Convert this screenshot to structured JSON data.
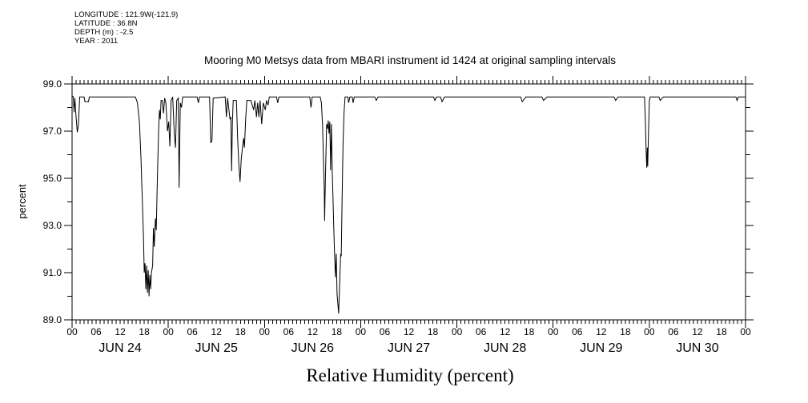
{
  "metadata": {
    "lines": [
      "LONGITUDE : 121.9W(-121.9)",
      "LATITUDE : 36.8N",
      "DEPTH (m) : -2.5",
      "YEAR : 2011"
    ]
  },
  "chart_data": {
    "type": "line",
    "title": "Mooring M0 Metsys data from MBARI instrument id 1424 at original sampling intervals",
    "xlabel": "Relative Humidity (percent)",
    "ylabel": "percent",
    "ylim": [
      89.0,
      99.0
    ],
    "y_major_ticks": [
      89.0,
      91.0,
      93.0,
      95.0,
      97.0,
      99.0
    ],
    "y_minor_step": 1.0,
    "x_range_hours": [
      0,
      168
    ],
    "x_start": "JUN 24 00:00",
    "x_end": "JUL 01 00:00",
    "x_hour_label_step": 6,
    "hour_label_cycle": [
      "00",
      "06",
      "12",
      "18"
    ],
    "day_labels": [
      "JUN 24",
      "JUN 25",
      "JUN 26",
      "JUN 27",
      "JUN 28",
      "JUN 29",
      "JUN 30"
    ],
    "grid": false,
    "legend": "none",
    "line_color": "#000000",
    "background": "#ffffff",
    "points_hour_percent": [
      [
        0,
        98.5
      ],
      [
        0.3,
        98.45
      ],
      [
        0.5,
        97.8
      ],
      [
        0.7,
        98.4
      ],
      [
        1.0,
        97.6
      ],
      [
        1.3,
        96.95
      ],
      [
        1.6,
        97.3
      ],
      [
        1.9,
        98.45
      ],
      [
        3.0,
        98.45
      ],
      [
        3.2,
        98.25
      ],
      [
        4.1,
        98.25
      ],
      [
        4.3,
        98.45
      ],
      [
        15.8,
        98.45
      ],
      [
        16.3,
        98.2
      ],
      [
        16.8,
        97.4
      ],
      [
        17.2,
        95.8
      ],
      [
        17.5,
        94.2
      ],
      [
        17.8,
        92.6
      ],
      [
        18.0,
        91.0
      ],
      [
        18.2,
        91.4
      ],
      [
        18.4,
        90.3
      ],
      [
        18.6,
        91.3
      ],
      [
        18.8,
        90.15
      ],
      [
        19.0,
        91.1
      ],
      [
        19.2,
        90.0
      ],
      [
        19.4,
        90.9
      ],
      [
        19.6,
        90.3
      ],
      [
        19.8,
        91.0
      ],
      [
        20.1,
        91.3
      ],
      [
        20.3,
        92.9
      ],
      [
        20.5,
        92.1
      ],
      [
        20.8,
        93.3
      ],
      [
        21.0,
        92.8
      ],
      [
        21.2,
        94.4
      ],
      [
        21.4,
        95.8
      ],
      [
        21.6,
        97.1
      ],
      [
        21.8,
        97.9
      ],
      [
        22.0,
        97.5
      ],
      [
        22.2,
        98.3
      ],
      [
        22.5,
        98.3
      ],
      [
        22.8,
        97.75
      ],
      [
        23.1,
        98.4
      ],
      [
        23.4,
        98.2
      ],
      [
        23.8,
        97.0
      ],
      [
        24.1,
        97.4
      ],
      [
        24.4,
        96.35
      ],
      [
        24.7,
        98.3
      ],
      [
        25.1,
        98.45
      ],
      [
        25.5,
        96.9
      ],
      [
        25.8,
        96.3
      ],
      [
        26.1,
        98.3
      ],
      [
        26.5,
        98.4
      ],
      [
        26.7,
        94.6
      ],
      [
        27.0,
        98.2
      ],
      [
        27.3,
        98.0
      ],
      [
        27.6,
        98.45
      ],
      [
        31.2,
        98.45
      ],
      [
        31.5,
        98.2
      ],
      [
        31.8,
        98.45
      ],
      [
        34.3,
        98.45
      ],
      [
        34.6,
        96.5
      ],
      [
        34.9,
        96.6
      ],
      [
        35.2,
        98.4
      ],
      [
        38.2,
        98.45
      ],
      [
        38.5,
        97.6
      ],
      [
        38.8,
        98.4
      ],
      [
        39.4,
        97.5
      ],
      [
        39.6,
        97.6
      ],
      [
        39.8,
        95.3
      ],
      [
        40.0,
        97.4
      ],
      [
        40.2,
        98.3
      ],
      [
        41.0,
        98.3
      ],
      [
        41.3,
        96.7
      ],
      [
        41.6,
        95.6
      ],
      [
        41.9,
        94.85
      ],
      [
        42.2,
        95.8
      ],
      [
        42.5,
        96.3
      ],
      [
        42.8,
        96.7
      ],
      [
        43.0,
        96.3
      ],
      [
        43.3,
        97.5
      ],
      [
        43.6,
        98.3
      ],
      [
        44.6,
        98.3
      ],
      [
        45.3,
        97.9
      ],
      [
        45.6,
        98.3
      ],
      [
        46.0,
        97.6
      ],
      [
        46.3,
        98.2
      ],
      [
        46.6,
        97.6
      ],
      [
        46.9,
        98.3
      ],
      [
        47.3,
        97.3
      ],
      [
        47.7,
        98.2
      ],
      [
        48.2,
        97.9
      ],
      [
        48.5,
        98.3
      ],
      [
        48.9,
        98.1
      ],
      [
        49.2,
        98.45
      ],
      [
        51.0,
        98.45
      ],
      [
        51.3,
        98.2
      ],
      [
        51.6,
        98.45
      ],
      [
        59.3,
        98.45
      ],
      [
        59.6,
        98.0
      ],
      [
        59.9,
        98.45
      ],
      [
        61.9,
        98.45
      ],
      [
        62.2,
        98.2
      ],
      [
        62.5,
        97.2
      ],
      [
        62.7,
        95.8
      ],
      [
        62.9,
        94.6
      ],
      [
        63.0,
        93.2
      ],
      [
        63.2,
        95.0
      ],
      [
        63.5,
        97.3
      ],
      [
        63.7,
        97.1
      ],
      [
        63.9,
        97.45
      ],
      [
        64.1,
        96.9
      ],
      [
        64.3,
        97.4
      ],
      [
        64.5,
        95.34
      ],
      [
        64.7,
        97.3
      ],
      [
        64.9,
        95.3
      ],
      [
        65.1,
        94.1
      ],
      [
        65.3,
        92.8
      ],
      [
        65.5,
        91.7
      ],
      [
        65.7,
        90.8
      ],
      [
        65.9,
        91.8
      ],
      [
        66.1,
        90.1
      ],
      [
        66.5,
        89.27
      ],
      [
        66.8,
        90.8
      ],
      [
        67.0,
        91.8
      ],
      [
        67.15,
        91.7
      ],
      [
        67.35,
        94.0
      ],
      [
        67.6,
        96.5
      ],
      [
        67.85,
        97.8
      ],
      [
        68.1,
        98.45
      ],
      [
        68.8,
        98.45
      ],
      [
        69.0,
        98.2
      ],
      [
        69.3,
        98.45
      ],
      [
        69.9,
        98.45
      ],
      [
        70.1,
        98.2
      ],
      [
        70.4,
        98.45
      ],
      [
        75.5,
        98.45
      ],
      [
        75.9,
        98.3
      ],
      [
        76.3,
        98.45
      ],
      [
        90.2,
        98.45
      ],
      [
        90.5,
        98.3
      ],
      [
        90.9,
        98.45
      ],
      [
        91.9,
        98.45
      ],
      [
        92.3,
        98.25
      ],
      [
        92.9,
        98.45
      ],
      [
        111.9,
        98.45
      ],
      [
        112.3,
        98.25
      ],
      [
        113.2,
        98.45
      ],
      [
        117.2,
        98.45
      ],
      [
        117.6,
        98.3
      ],
      [
        118.5,
        98.45
      ],
      [
        135.2,
        98.45
      ],
      [
        135.6,
        98.3
      ],
      [
        136.2,
        98.45
      ],
      [
        142.8,
        98.45
      ],
      [
        143.0,
        97.5
      ],
      [
        143.2,
        96.2
      ],
      [
        143.35,
        95.45
      ],
      [
        143.5,
        96.3
      ],
      [
        143.6,
        95.5
      ],
      [
        143.8,
        97.0
      ],
      [
        144.0,
        98.3
      ],
      [
        144.2,
        98.45
      ],
      [
        146.4,
        98.45
      ],
      [
        146.7,
        98.3
      ],
      [
        147.5,
        98.45
      ],
      [
        165.6,
        98.45
      ],
      [
        165.9,
        98.3
      ],
      [
        166.2,
        98.45
      ],
      [
        168,
        98.45
      ]
    ]
  }
}
